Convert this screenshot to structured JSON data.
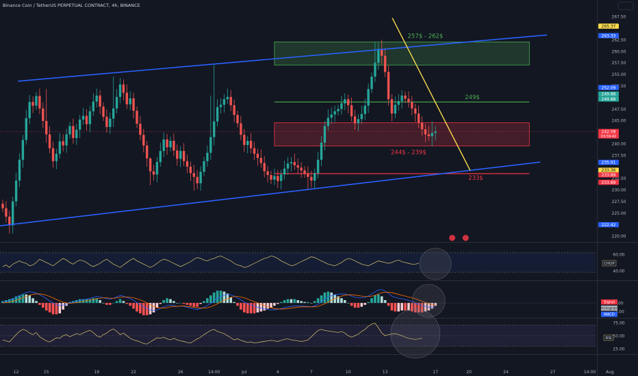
{
  "header": {
    "symbol_title": "Binance Coin / TetherUS PERPETUAL CONTRACT, 4h, BINANCE"
  },
  "colors": {
    "background": "#131722",
    "up_candle": "#26a69a",
    "down_candle": "#ef5350",
    "channel_line": "#2962ff",
    "trend_line": "#f7d94c",
    "green_zone": "#4caf50",
    "red_zone": "#f23645",
    "indicator_line": "#c7b46a"
  },
  "chart_data": [
    {
      "type": "candlestick",
      "panel": "price",
      "y_ticks": [
        "267.50",
        "262.50",
        "260.00",
        "257.50",
        "255.00",
        "252.50",
        "247.50",
        "245.00",
        "240.00",
        "237.50",
        "232.50",
        "230.00",
        "227.50",
        "225.00",
        "220.00"
      ],
      "ylim": [
        219,
        269
      ],
      "x_ticks": [
        "12",
        "15",
        "19",
        "22",
        "26",
        "14:00",
        "Jul",
        "4",
        "7",
        "10",
        "13",
        "17",
        "20",
        "24",
        "27",
        "14:00",
        "Aug"
      ],
      "price_badges": [
        {
          "label": "265.37",
          "value": 265.37,
          "color": "#f7d94c",
          "text_color": "#131722"
        },
        {
          "label": "263.33",
          "value": 263.33,
          "color": "#2962ff",
          "text_color": "#ffffff"
        },
        {
          "label": "252.09",
          "value": 252.09,
          "color": "#2962ff",
          "text_color": "#ffffff"
        },
        {
          "label": "249.88",
          "value": 250.7,
          "color": "#26a69a",
          "text_color": "#ffffff"
        },
        {
          "label": "249.88",
          "value": 249.6,
          "color": "#26a69a",
          "text_color": "#ffffff"
        },
        {
          "label": "242.58",
          "value": 242.58,
          "color": "#f23645",
          "text_color": "#ffffff",
          "sub": "03:59:42"
        },
        {
          "label": "235.91",
          "value": 235.91,
          "color": "#2962ff",
          "text_color": "#ffffff"
        },
        {
          "label": "233.36",
          "value": 234.2,
          "color": "#f7d94c",
          "text_color": "#131722"
        },
        {
          "label": "233.89",
          "value": 233.2,
          "color": "#f23645",
          "text_color": "#ffffff"
        },
        {
          "label": "233.89",
          "value": 231.6,
          "color": "#f23645",
          "text_color": "#ffffff"
        },
        {
          "label": "222.42",
          "value": 222.42,
          "color": "#2962ff",
          "text_color": "#ffffff"
        }
      ],
      "annotations": [
        {
          "label": "257$ - 262$",
          "kind": "zone",
          "color": "#4caf50",
          "from": 257,
          "to": 262
        },
        {
          "label": "249$",
          "kind": "level",
          "color": "#4caf50",
          "value": 249
        },
        {
          "label": "244$ - 239$",
          "kind": "zone",
          "color": "#f23645",
          "from": 239.5,
          "to": 244.5
        },
        {
          "label": "233$",
          "kind": "level",
          "color": "#f23645",
          "value": 233.5
        }
      ],
      "channel": {
        "upper": [
          {
            "i": 0,
            "v": 253.5
          },
          {
            "i": 148,
            "v": 263.5
          }
        ],
        "lower": [
          {
            "i": -5,
            "v": 222.2
          },
          {
            "i": 148,
            "v": 236.0
          }
        ]
      },
      "trendline": [
        {
          "i": 110,
          "v": 267.2
        },
        {
          "i": 132,
          "v": 234.2
        }
      ],
      "candles": {
        "start_open": 227.0,
        "closes": [
          226.0,
          224.2,
          222.3,
          227.5,
          232.0,
          236.5,
          240.8,
          245.5,
          249.0,
          248.2,
          250.3,
          247.6,
          244.9,
          242.0,
          239.0,
          236.2,
          237.8,
          240.5,
          239.6,
          242.0,
          243.8,
          241.2,
          243.0,
          245.2,
          246.0,
          244.2,
          247.0,
          249.1,
          250.4,
          248.0,
          245.8,
          243.6,
          245.4,
          247.6,
          250.1,
          252.8,
          251.0,
          248.5,
          249.8,
          247.1,
          244.3,
          241.9,
          239.6,
          236.8,
          234.0,
          233.3,
          236.0,
          238.4,
          240.9,
          239.2,
          240.6,
          238.5,
          236.7,
          238.4,
          236.2,
          235.0,
          233.6,
          232.8,
          231.4,
          233.9,
          236.2,
          238.0,
          241.4,
          244.8,
          247.9,
          248.4,
          249.6,
          250.1,
          248.3,
          246.2,
          244.4,
          241.9,
          239.7,
          240.6,
          239.0,
          237.8,
          236.9,
          235.8,
          234.0,
          233.2,
          232.2,
          233.0,
          231.9,
          233.3,
          234.6,
          235.7,
          236.0,
          235.3,
          234.8,
          234.2,
          233.5,
          232.8,
          232.0,
          233.6,
          236.5,
          240.2,
          243.8,
          245.6,
          246.3,
          247.0,
          247.5,
          248.7,
          249.6,
          248.3,
          245.9,
          244.4,
          245.3,
          246.4,
          248.2,
          251.8,
          254.5,
          257.5,
          260.5,
          259.0,
          255.5,
          249.6,
          246.5,
          248.4,
          249.2,
          250.4,
          249.7,
          249.0,
          247.6,
          246.5,
          244.5,
          243.1,
          242.0,
          241.6,
          242.3,
          242.6
        ],
        "highs": {
          "13": 251.8,
          "33": 254.5,
          "44": 237.0,
          "62": 250.4,
          "63": 257.0,
          "113": 262.5,
          "111": 262.0,
          "128": 244.8
        },
        "lows": {
          "2": 220.5,
          "44": 231.0,
          "45": 232.0,
          "91": 230.0,
          "57": 229.8,
          "128": 239.4
        }
      }
    },
    {
      "type": "line",
      "panel": "chop",
      "indicator": "CHOP",
      "y_ticks": [
        "60.00",
        "40.00"
      ],
      "ylim": [
        35,
        65
      ],
      "values": [
        45,
        47,
        44,
        48,
        50,
        52,
        50,
        49,
        46,
        47,
        50,
        54,
        52,
        50,
        48,
        46,
        49,
        52,
        55,
        53,
        50,
        48,
        51,
        53,
        52,
        50,
        47,
        45,
        47,
        49,
        52,
        54,
        51,
        48,
        46,
        44,
        47,
        50,
        53,
        55,
        52,
        50,
        48,
        46,
        44,
        46,
        49,
        52,
        54,
        53,
        51,
        49,
        47,
        45,
        47,
        49,
        51,
        54,
        56,
        55,
        53,
        52,
        54,
        55,
        57,
        58,
        56,
        54,
        52,
        49,
        47,
        46,
        44,
        45,
        47,
        49,
        51,
        53,
        55,
        56,
        58,
        57,
        55,
        52,
        50,
        48,
        46,
        47,
        49,
        51,
        53,
        55,
        57,
        56,
        54,
        52,
        50,
        48,
        47,
        46,
        48,
        50,
        53,
        55,
        54,
        52,
        50,
        48,
        47,
        46,
        48,
        50,
        52,
        51,
        50,
        49,
        50,
        52,
        53,
        51,
        50,
        49,
        48,
        48,
        49
      ]
    },
    {
      "type": "bar",
      "panel": "macd",
      "indicator": "MACD",
      "labels": [
        "Signal",
        "Histogram",
        "MACD"
      ],
      "y_ticks": [
        "0.00",
        "-2.00"
      ],
      "ylim": [
        -3,
        4
      ],
      "macd": [
        0.2,
        0.4,
        0.6,
        0.9,
        1.3,
        1.7,
        2.1,
        2.4,
        2.6,
        2.5,
        2.3,
        1.9,
        1.5,
        1.0,
        0.5,
        0.0,
        -0.4,
        -0.6,
        -0.5,
        -0.3,
        0.0,
        0.2,
        0.4,
        0.6,
        0.8,
        0.9,
        1.1,
        1.3,
        1.5,
        1.4,
        1.2,
        1.0,
        0.9,
        1.1,
        1.4,
        1.7,
        1.6,
        1.3,
        1.0,
        0.6,
        0.1,
        -0.4,
        -0.9,
        -1.3,
        -1.6,
        -1.8,
        -1.6,
        -1.3,
        -0.9,
        -0.6,
        -0.5,
        -0.6,
        -0.8,
        -0.7,
        -0.8,
        -1.0,
        -1.2,
        -1.4,
        -1.5,
        -1.3,
        -1.0,
        -0.6,
        -0.1,
        0.5,
        1.1,
        1.5,
        1.8,
        2.0,
        1.9,
        1.6,
        1.2,
        0.7,
        0.2,
        -0.2,
        -0.5,
        -0.8,
        -1.0,
        -1.2,
        -1.4,
        -1.5,
        -1.6,
        -1.6,
        -1.5,
        -1.3,
        -1.1,
        -0.9,
        -0.8,
        -0.7,
        -0.7,
        -0.7,
        -0.8,
        -0.8,
        -0.9,
        -0.7,
        -0.3,
        0.3,
        0.9,
        1.4,
        1.7,
        1.9,
        2.0,
        2.1,
        2.1,
        1.9,
        1.6,
        1.3,
        1.2,
        1.2,
        1.3,
        1.6,
        2.1,
        2.6,
        3.0,
        3.1,
        2.8,
        2.2,
        1.6,
        1.3,
        1.1,
        1.0,
        0.8,
        0.6,
        0.3,
        0.0,
        -0.3,
        -0.6,
        -0.8,
        -1.0,
        -1.0,
        -0.9
      ],
      "signal": [
        0.0,
        0.1,
        0.2,
        0.4,
        0.6,
        0.9,
        1.2,
        1.5,
        1.8,
        2.0,
        2.1,
        2.1,
        2.0,
        1.8,
        1.5,
        1.2,
        0.8,
        0.5,
        0.2,
        0.0,
        -0.1,
        0.0,
        0.1,
        0.2,
        0.4,
        0.5,
        0.7,
        0.8,
        1.0,
        1.1,
        1.2,
        1.2,
        1.1,
        1.1,
        1.2,
        1.3,
        1.4,
        1.4,
        1.3,
        1.2,
        1.0,
        0.7,
        0.4,
        0.0,
        -0.4,
        -0.8,
        -1.1,
        -1.2,
        -1.2,
        -1.1,
        -0.9,
        -0.8,
        -0.8,
        -0.7,
        -0.7,
        -0.8,
        -0.9,
        -1.0,
        -1.1,
        -1.2,
        -1.2,
        -1.1,
        -0.9,
        -0.6,
        -0.2,
        0.2,
        0.6,
        1.0,
        1.3,
        1.5,
        1.5,
        1.4,
        1.2,
        0.9,
        0.6,
        0.3,
        0.0,
        -0.3,
        -0.6,
        -0.9,
        -1.1,
        -1.3,
        -1.4,
        -1.4,
        -1.4,
        -1.3,
        -1.2,
        -1.1,
        -1.0,
        -0.9,
        -0.9,
        -0.9,
        -0.9,
        -0.9,
        -0.8,
        -0.5,
        -0.2,
        0.2,
        0.6,
        1.0,
        1.3,
        1.6,
        1.8,
        1.9,
        1.9,
        1.8,
        1.7,
        1.6,
        1.5,
        1.5,
        1.6,
        1.8,
        2.1,
        2.4,
        2.5,
        2.5,
        2.4,
        2.2,
        2.0,
        1.8,
        1.6,
        1.4,
        1.2,
        1.0,
        0.7,
        0.4,
        0.1,
        -0.2,
        -0.4,
        -0.6
      ]
    },
    {
      "type": "line",
      "panel": "rsi",
      "indicator": "RSI",
      "y_ticks": [
        "75.00",
        "50.00",
        "25.00"
      ],
      "ylim": [
        20,
        80
      ],
      "values": [
        42,
        40,
        38,
        45,
        52,
        58,
        62,
        60,
        55,
        52,
        56,
        48,
        44,
        40,
        38,
        42,
        46,
        45,
        50,
        52,
        48,
        51,
        54,
        52,
        55,
        58,
        60,
        56,
        50,
        47,
        52,
        55,
        60,
        63,
        58,
        52,
        55,
        50,
        45,
        42,
        40,
        38,
        35,
        34,
        38,
        42,
        46,
        45,
        47,
        44,
        42,
        45,
        42,
        40,
        39,
        37,
        36,
        40,
        44,
        47,
        52,
        56,
        60,
        62,
        58,
        56,
        54,
        50,
        46,
        42,
        44,
        41,
        39,
        37,
        38,
        36,
        37,
        38,
        39,
        40,
        41,
        40,
        39,
        41,
        43,
        44,
        42,
        41,
        40,
        39,
        40,
        42,
        48,
        54,
        60,
        62,
        60,
        59,
        58,
        57,
        56,
        58,
        55,
        50,
        47,
        50,
        53,
        58,
        62,
        68,
        72,
        74,
        65,
        55,
        50,
        52,
        53,
        54,
        52,
        50,
        47,
        45,
        44,
        43,
        44,
        45
      ]
    }
  ]
}
